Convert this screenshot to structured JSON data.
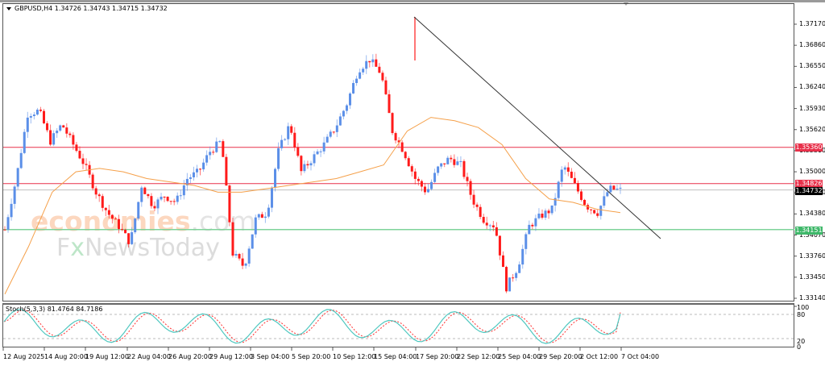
{
  "header": {
    "symbol": "GBPUSD,H4",
    "ohlc": "1.34726 1.34743 1.34715 1.34732",
    "title": "GBPUSD,H4  1.34726 1.34743 1.34715 1.34732"
  },
  "watermark": {
    "line1_main": "economies",
    "line1_suffix": ".com",
    "line2_a": "F",
    "line2_x": "x",
    "line2_b": "NewsToday"
  },
  "price_axis": {
    "ticks": [
      "1.37170",
      "1.36860",
      "1.36550",
      "1.36240",
      "1.35930",
      "1.35620",
      "1.35310",
      "1.35000",
      "1.34690",
      "1.34380",
      "1.34070",
      "1.33760",
      "1.33450",
      "1.33140"
    ]
  },
  "price_tags": {
    "resistance_1": {
      "value": "1.35360",
      "color": "#e8304a"
    },
    "resistance_2": {
      "value": "1.34826",
      "color": "#e8304a"
    },
    "current": {
      "value": "1.34732",
      "color": "#000000"
    },
    "support": {
      "value": "1.34151",
      "color": "#3fb86a"
    }
  },
  "stoch": {
    "label": "Stoch(5,3,3) 81.4764 84.7186",
    "main_value": "81.4764",
    "signal_value": "84.7186",
    "levels": [
      "100",
      "80",
      "20",
      "0"
    ],
    "main_color": "#4fc8c0",
    "signal_color": "#ff3030"
  },
  "time_axis": {
    "labels": [
      "12 Aug 2025",
      "14 Aug 20:00",
      "19 Aug 12:00",
      "22 Aug 04:00",
      "26 Aug 20:00",
      "29 Aug 12:00",
      "3 Sep 04:00",
      "5 Sep 20:00",
      "10 Sep 12:00",
      "15 Sep 04:00",
      "17 Sep 20:00",
      "22 Sep 12:00",
      "25 Sep 04:00",
      "29 Sep 20:00",
      "2 Oct 12:00",
      "7 Oct 04:00"
    ]
  },
  "colors": {
    "bull": "#5b8fe8",
    "bear": "#ff1a1a",
    "ma": "#f5a04a",
    "resistance": "#e8304a",
    "support": "#7fd39a",
    "trendline": "#333333",
    "current_line": "#c0c0c0"
  },
  "chart_data": {
    "type": "candlestick",
    "title": "GBPUSD,H4",
    "ylabel": "Price",
    "ylim": [
      1.331,
      1.373
    ],
    "x_labels": [
      "12 Aug 2025",
      "14 Aug 20:00",
      "19 Aug 12:00",
      "22 Aug 04:00",
      "26 Aug 20:00",
      "29 Aug 12:00",
      "3 Sep 04:00",
      "5 Sep 20:00",
      "10 Sep 12:00",
      "15 Sep 04:00",
      "17 Sep 20:00",
      "22 Sep 12:00",
      "25 Sep 04:00",
      "29 Sep 20:00",
      "2 Oct 12:00",
      "7 Oct 04:00"
    ],
    "last_ohlc": {
      "open": 1.34726,
      "high": 1.34743,
      "low": 1.34715,
      "close": 1.34732
    },
    "horizontal_levels": [
      {
        "name": "resistance",
        "value": 1.3536
      },
      {
        "name": "resistance",
        "value": 1.34826
      },
      {
        "name": "current",
        "value": 1.34732
      },
      {
        "name": "support",
        "value": 1.34151
      }
    ],
    "trendline": {
      "from": {
        "x": "17 Sep 04:00",
        "y": 1.3725
      },
      "to": {
        "x": "8 Oct",
        "y": 1.34
      }
    },
    "close_path_approx": [
      1.3415,
      1.349,
      1.3585,
      1.359,
      1.3545,
      1.357,
      1.354,
      1.351,
      1.347,
      1.344,
      1.342,
      1.3395,
      1.348,
      1.345,
      1.3465,
      1.3455,
      1.349,
      1.35,
      1.353,
      1.3545,
      1.338,
      1.336,
      1.343,
      1.344,
      1.353,
      1.357,
      1.35,
      1.352,
      1.354,
      1.3565,
      1.36,
      1.365,
      1.3665,
      1.3645,
      1.356,
      1.353,
      1.349,
      1.347,
      1.3505,
      1.352,
      1.351,
      1.346,
      1.343,
      1.342,
      1.333,
      1.336,
      1.342,
      1.3435,
      1.3445,
      1.351,
      1.348,
      1.345,
      1.344,
      1.3475,
      1.3473
    ],
    "moving_average_approx": [
      1.332,
      1.339,
      1.347,
      1.35,
      1.3505,
      1.35,
      1.349,
      1.3485,
      1.348,
      1.347,
      1.347,
      1.3475,
      1.348,
      1.3485,
      1.349,
      1.35,
      1.351,
      1.356,
      1.358,
      1.3575,
      1.3565,
      1.354,
      1.349,
      1.346,
      1.3455,
      1.3445,
      1.344
    ],
    "stochastic": {
      "main_last": 81.4764,
      "signal_last": 84.7186,
      "levels": [
        80,
        20
      ],
      "ylim": [
        0,
        100
      ]
    }
  }
}
